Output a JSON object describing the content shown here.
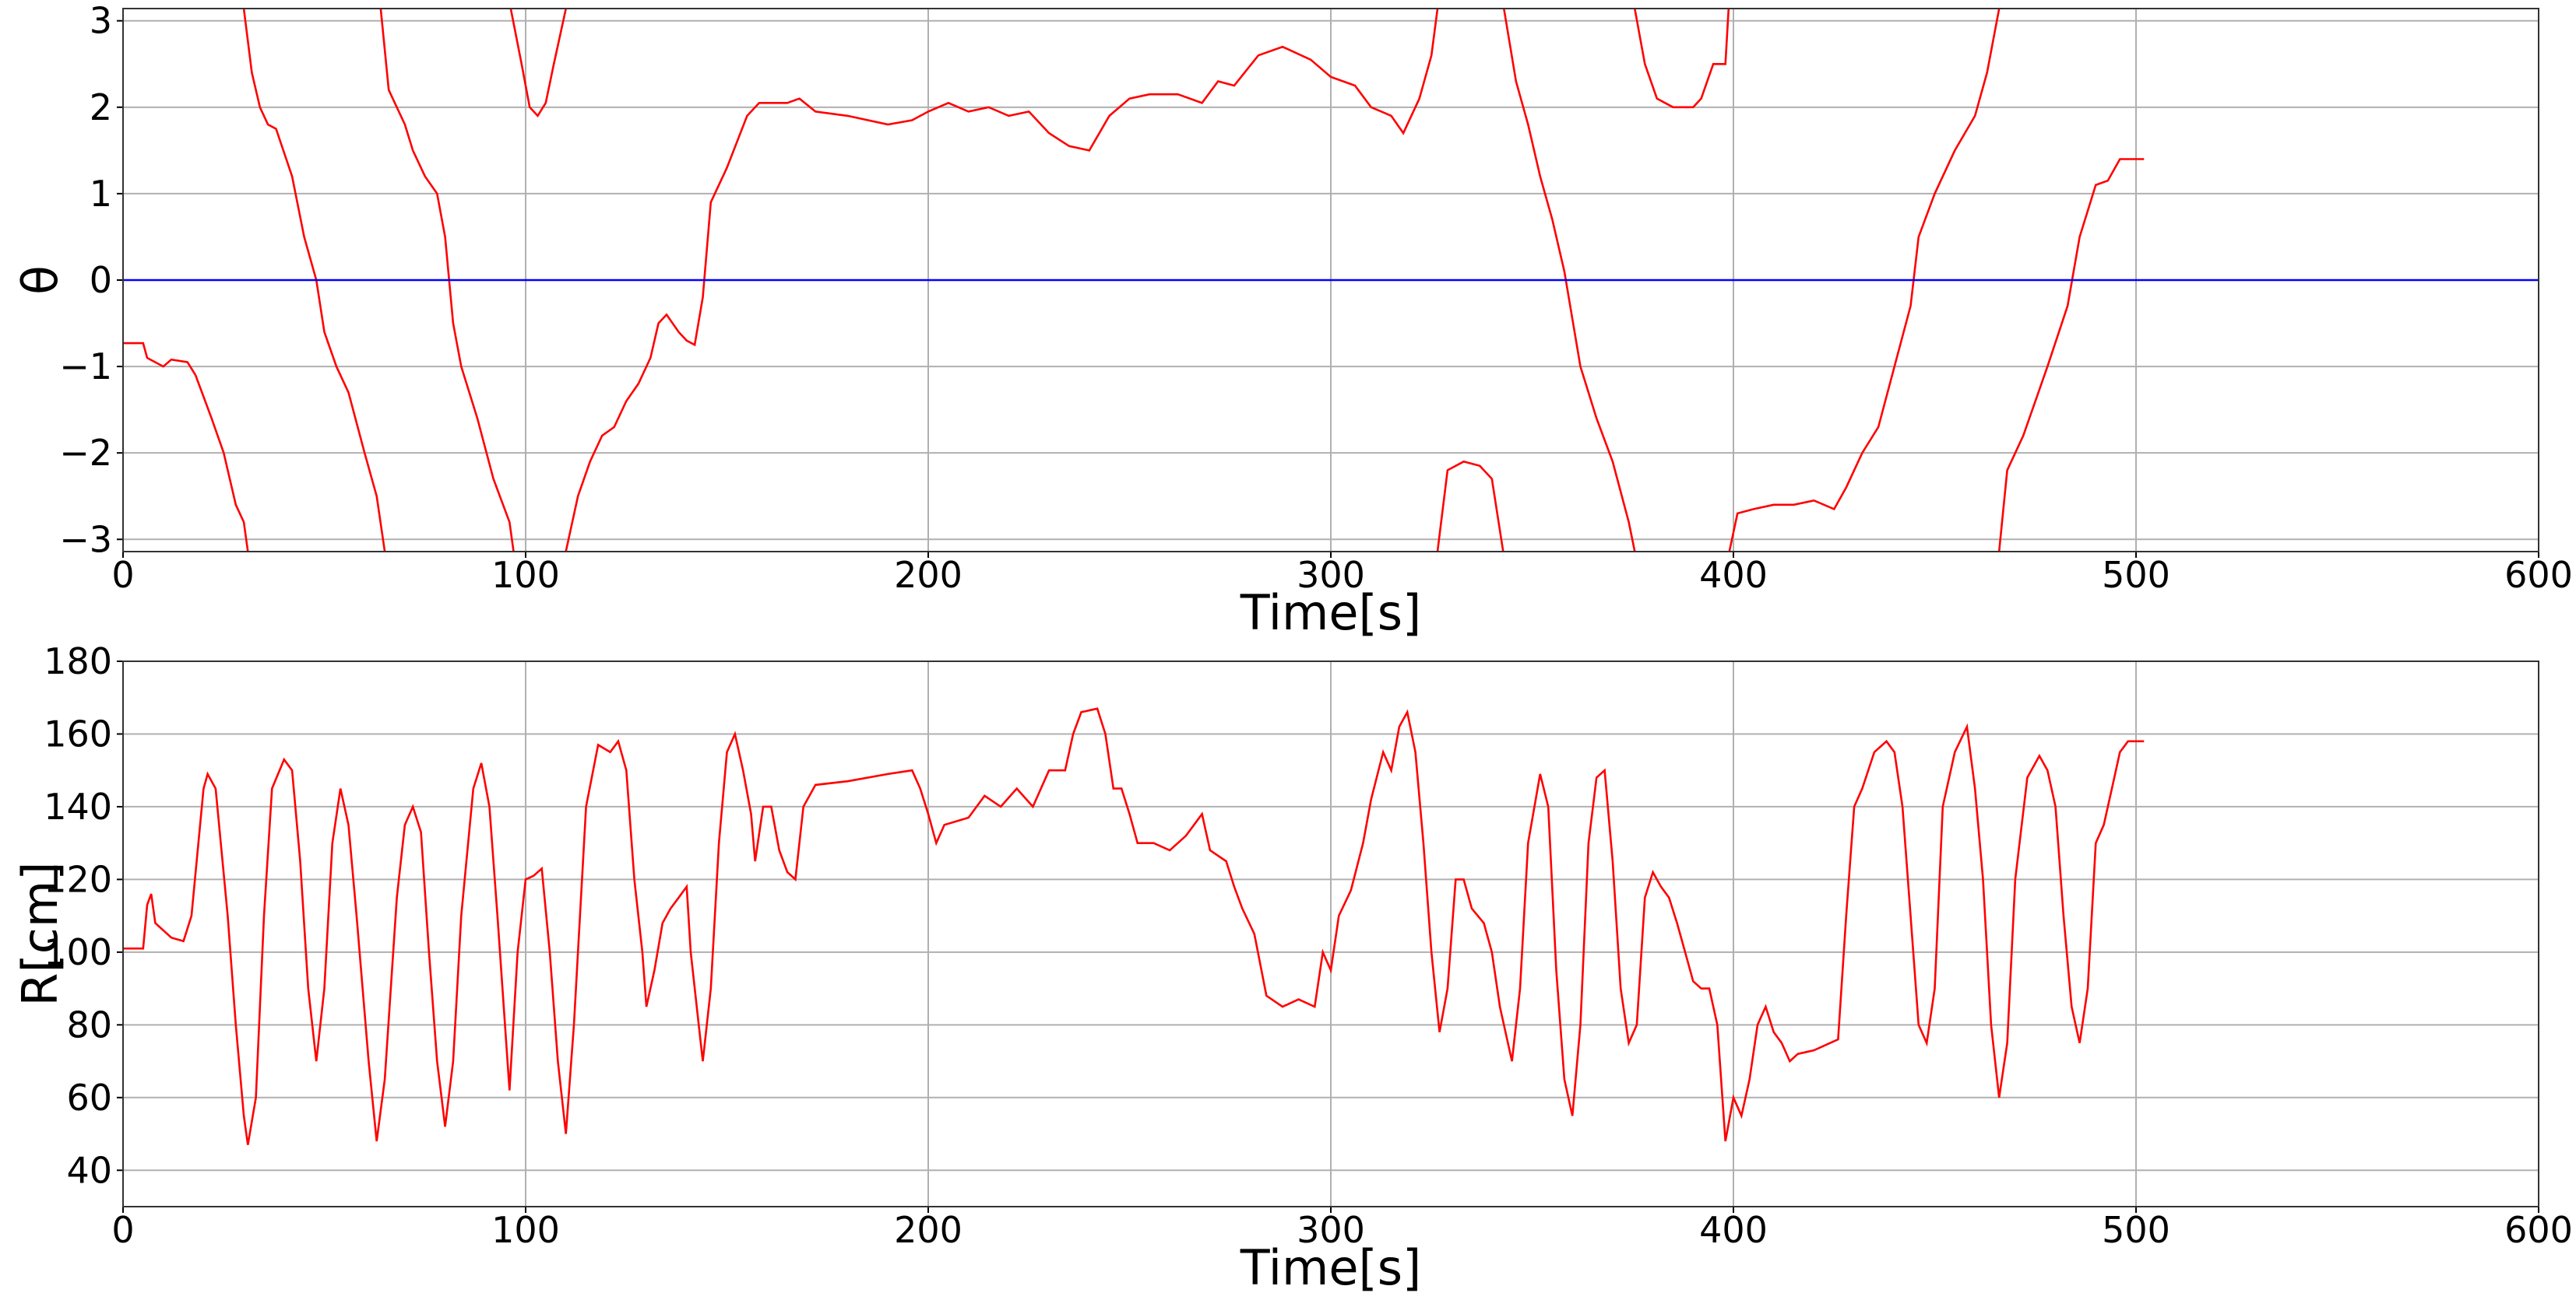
{
  "chart_data": [
    {
      "type": "line",
      "xlabel": "Time[s]",
      "ylabel": "θ",
      "xlim": [
        0,
        600
      ],
      "ylim": [
        -3.1416,
        3.1416
      ],
      "grid": true,
      "xticks": [
        0,
        100,
        200,
        300,
        400,
        500,
        600
      ],
      "yticks": [
        {
          "value": -3,
          "label": "−3"
        },
        {
          "value": -2,
          "label": "−2"
        },
        {
          "value": -1,
          "label": "−1"
        },
        0,
        1,
        2,
        3
      ],
      "series": [
        {
          "color": "#ff0000",
          "x": [
            0,
            5,
            6,
            10,
            12,
            16,
            18,
            22,
            25,
            28,
            30,
            31,
            null,
            30,
            32,
            34,
            36,
            38,
            42,
            45,
            48,
            50,
            53,
            56,
            60,
            63,
            65,
            null,
            64,
            66,
            70,
            72,
            75,
            78,
            80,
            82,
            84,
            88,
            92,
            96,
            97,
            null,
            96.3,
            99,
            101,
            103,
            105,
            107,
            110,
            null,
            110,
            113,
            116,
            119,
            122,
            125,
            128,
            131,
            133,
            135,
            138,
            140,
            142,
            144,
            146,
            150,
            155,
            158,
            165,
            168,
            172,
            180,
            190,
            196,
            200,
            205,
            210,
            215,
            220,
            225,
            230,
            235,
            240,
            245,
            250,
            255,
            262,
            268,
            272,
            276,
            282,
            288,
            295,
            300,
            306,
            310,
            315,
            318,
            322,
            325,
            326.5,
            null,
            326.5,
            329,
            333,
            337,
            340,
            342.8,
            null,
            343,
            346,
            349,
            352,
            355,
            358,
            362,
            366,
            370,
            374,
            375.5,
            null,
            375.5,
            378,
            381,
            385,
            390,
            392,
            395,
            398,
            398.8,
            null,
            399,
            401,
            405,
            410,
            415,
            420,
            425,
            428,
            432,
            436,
            440,
            444,
            446,
            450,
            455,
            460,
            463,
            466,
            null,
            466,
            468,
            472,
            478,
            483,
            486,
            490,
            493,
            496,
            502
          ],
          "values": [
            -0.73,
            -0.73,
            -0.9,
            -1.0,
            -0.92,
            -0.95,
            -1.1,
            -1.6,
            -2.0,
            -2.6,
            -2.8,
            -3.14,
            null,
            3.14,
            2.4,
            2.0,
            1.8,
            1.75,
            1.2,
            0.5,
            0,
            -0.6,
            -1.0,
            -1.3,
            -2.0,
            -2.5,
            -3.14,
            null,
            3.14,
            2.2,
            1.8,
            1.5,
            1.2,
            1.0,
            0.5,
            -0.5,
            -1.0,
            -1.6,
            -2.3,
            -2.8,
            -3.14,
            null,
            3.14,
            2.5,
            2.0,
            1.9,
            2.05,
            2.5,
            3.14,
            null,
            -3.14,
            -2.5,
            -2.1,
            -1.8,
            -1.7,
            -1.4,
            -1.2,
            -0.9,
            -0.5,
            -0.4,
            -0.6,
            -0.7,
            -0.75,
            -0.2,
            0.9,
            1.3,
            1.9,
            2.05,
            2.05,
            2.1,
            1.95,
            1.9,
            1.8,
            1.85,
            1.95,
            2.05,
            1.95,
            2.0,
            1.9,
            1.95,
            1.7,
            1.55,
            1.5,
            1.9,
            2.1,
            2.15,
            2.15,
            2.05,
            2.3,
            2.25,
            2.6,
            2.7,
            2.55,
            2.35,
            2.25,
            2.0,
            1.9,
            1.7,
            2.1,
            2.6,
            3.14,
            null,
            -3.14,
            -2.2,
            -2.1,
            -2.15,
            -2.3,
            -3.14,
            null,
            3.14,
            2.3,
            1.8,
            1.2,
            0.7,
            0.1,
            -1.0,
            -1.6,
            -2.1,
            -2.8,
            -3.14,
            null,
            3.14,
            2.5,
            2.1,
            2.0,
            2.0,
            2.1,
            2.5,
            2.5,
            3.14,
            null,
            -3.14,
            -2.7,
            -2.65,
            -2.6,
            -2.6,
            -2.55,
            -2.65,
            -2.4,
            -2.0,
            -1.7,
            -1.0,
            -0.3,
            0.5,
            1.0,
            1.5,
            1.9,
            2.4,
            3.14,
            null,
            -3.14,
            -2.2,
            -1.8,
            -1.0,
            -0.3,
            0.5,
            1.1,
            1.15,
            1.4,
            1.4
          ]
        },
        {
          "color": "#0000ff",
          "x": [
            0,
            600
          ],
          "values": [
            0,
            0
          ]
        }
      ]
    },
    {
      "type": "line",
      "xlabel": "Time[s]",
      "ylabel": "R[cm]",
      "xlim": [
        0,
        600
      ],
      "ylim": [
        30,
        180
      ],
      "grid": true,
      "xticks": [
        0,
        100,
        200,
        300,
        400,
        500,
        600
      ],
      "yticks": [
        40,
        60,
        80,
        100,
        120,
        140,
        160,
        180
      ],
      "series": [
        {
          "color": "#ff0000",
          "x": [
            0,
            5,
            6,
            7,
            8,
            12,
            15,
            17,
            20,
            21,
            23,
            26,
            28,
            30,
            31,
            33,
            35,
            37,
            40,
            42,
            44,
            46,
            48,
            50,
            52,
            54,
            56,
            58,
            61,
            63,
            65,
            68,
            70,
            72,
            74,
            76,
            78,
            80,
            82,
            84,
            87,
            89,
            91,
            93,
            96,
            98,
            100,
            102,
            104,
            106,
            108,
            110,
            112,
            115,
            118,
            121,
            123,
            125,
            127,
            129,
            130,
            132,
            134,
            136,
            138,
            140,
            141,
            143,
            144,
            146,
            148,
            150,
            152,
            154,
            156,
            157,
            159,
            161,
            163,
            165,
            167,
            169,
            172,
            180,
            190,
            196,
            198,
            200,
            202,
            204,
            210,
            214,
            218,
            222,
            226,
            230,
            234,
            236,
            238,
            242,
            244,
            246,
            248,
            250,
            252,
            256,
            260,
            264,
            268,
            270,
            274,
            276,
            278,
            281,
            284,
            288,
            292,
            296,
            298,
            300,
            302,
            305,
            308,
            310,
            313,
            315,
            317,
            319,
            321,
            323,
            325,
            327,
            329,
            331,
            333,
            335,
            338,
            340,
            342,
            345,
            347,
            349,
            352,
            354,
            356,
            358,
            360,
            362,
            364,
            366,
            368,
            370,
            372,
            374,
            376,
            378,
            380,
            382,
            384,
            386,
            388,
            390,
            392,
            394,
            396,
            398,
            400,
            402,
            404,
            406,
            408,
            410,
            412,
            414,
            416,
            420,
            424,
            426,
            428,
            430,
            432,
            435,
            438,
            440,
            442,
            444,
            446,
            448,
            450,
            452,
            455,
            458,
            460,
            462,
            464,
            466,
            468,
            470,
            473,
            476,
            478,
            480,
            482,
            484,
            486,
            488,
            490,
            492,
            494,
            496,
            498,
            502
          ],
          "values": [
            101,
            101,
            113,
            116,
            108,
            104,
            103,
            110,
            145,
            149,
            145,
            110,
            80,
            55,
            47,
            60,
            110,
            145,
            153,
            150,
            125,
            90,
            70,
            90,
            130,
            145,
            135,
            110,
            70,
            48,
            65,
            115,
            135,
            140,
            133,
            100,
            70,
            52,
            70,
            110,
            145,
            152,
            140,
            110,
            62,
            100,
            120,
            121,
            123,
            100,
            70,
            50,
            80,
            140,
            157,
            155,
            158,
            150,
            120,
            100,
            85,
            95,
            108,
            112,
            115,
            118,
            100,
            80,
            70,
            90,
            130,
            155,
            160,
            150,
            138,
            125,
            140,
            140,
            128,
            122,
            120,
            140,
            146,
            147,
            149,
            150,
            145,
            138,
            130,
            135,
            137,
            143,
            140,
            145,
            140,
            150,
            150,
            160,
            166,
            167,
            160,
            145,
            145,
            138,
            130,
            130,
            128,
            132,
            138,
            128,
            125,
            118,
            112,
            105,
            88,
            85,
            87,
            85,
            100,
            95,
            110,
            117,
            130,
            142,
            155,
            150,
            162,
            166,
            155,
            130,
            100,
            78,
            90,
            120,
            120,
            112,
            108,
            100,
            85,
            70,
            90,
            130,
            149,
            140,
            95,
            65,
            55,
            80,
            130,
            148,
            150,
            125,
            90,
            75,
            80,
            115,
            122,
            118,
            115,
            108,
            100,
            92,
            90,
            90,
            80,
            48,
            60,
            55,
            65,
            80,
            85,
            78,
            75,
            70,
            72,
            73,
            75,
            76,
            110,
            140,
            145,
            155,
            158,
            155,
            140,
            110,
            80,
            75,
            90,
            140,
            155,
            162,
            145,
            120,
            80,
            60,
            75,
            120,
            148,
            154,
            150,
            140,
            110,
            85,
            75,
            90,
            130,
            135,
            145,
            155,
            158,
            158
          ]
        }
      ]
    }
  ]
}
